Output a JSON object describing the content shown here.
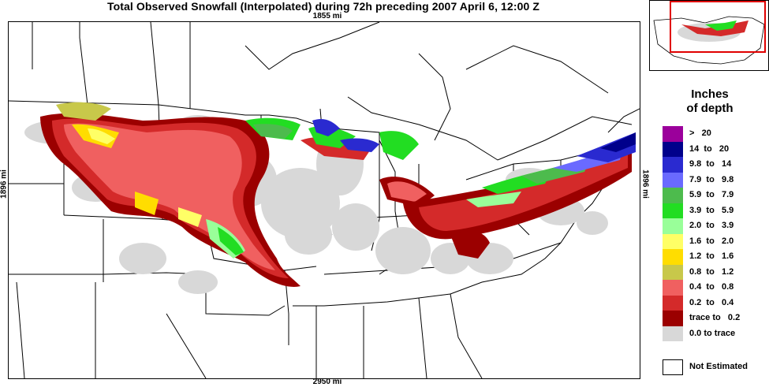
{
  "title": "Total Observed Snowfall (Interpolated) during 72h preceding 2007 April 6, 12:00 Z",
  "scale": {
    "top": "1855 mi",
    "bottom": "2950 mi",
    "left": "1896 mi",
    "right": "1896 mi"
  },
  "legend": {
    "title_line1": "Inches",
    "title_line2": "of depth",
    "items": [
      {
        "label": ">   20",
        "color": "#9b009b"
      },
      {
        "label": "14  to   20",
        "color": "#00008b"
      },
      {
        "label": "9.8  to   14",
        "color": "#2a2ad0"
      },
      {
        "label": "7.9  to   9.8",
        "color": "#6a6aff"
      },
      {
        "label": "5.9  to   7.9",
        "color": "#4dbb4d"
      },
      {
        "label": "3.9  to   5.9",
        "color": "#22dd22"
      },
      {
        "label": "2.0  to   3.9",
        "color": "#99ff99"
      },
      {
        "label": "1.6  to   2.0",
        "color": "#ffff66"
      },
      {
        "label": "1.2  to   1.6",
        "color": "#ffdd00"
      },
      {
        "label": "0.8  to   1.2",
        "color": "#c8c84a"
      },
      {
        "label": "0.4  to   0.8",
        "color": "#f06060"
      },
      {
        "label": "0.2  to   0.4",
        "color": "#d42a2a"
      },
      {
        "label": "trace to   0.2",
        "color": "#9b0000"
      },
      {
        "label": "0.0 to trace",
        "color": "#d8d8d8"
      }
    ],
    "not_estimated": {
      "label": "Not Estimated",
      "color": "#ffffff"
    }
  }
}
